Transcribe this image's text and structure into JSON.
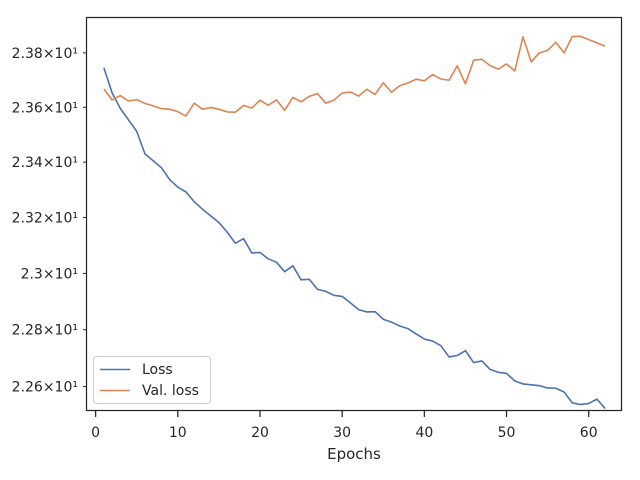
{
  "chart_data": {
    "type": "line",
    "title": "",
    "xlabel": "Epochs",
    "ylabel": "",
    "xlim": [
      -1.05,
      64.05
    ],
    "ylim": [
      22.5145,
      23.9289
    ],
    "x_ticks": [
      0,
      10,
      20,
      30,
      40,
      50,
      60
    ],
    "x_tick_labels": [
      "0",
      "10",
      "20",
      "30",
      "40",
      "50",
      "60"
    ],
    "y_ticks": [
      22.6,
      22.8,
      23.0,
      23.2,
      23.4,
      23.6,
      23.8
    ],
    "y_tick_labels": [
      "2.26×10¹",
      "2.28×10¹",
      "2.3×10¹",
      "2.32×10¹",
      "2.34×10¹",
      "2.36×10¹",
      "2.38×10¹"
    ],
    "y_scale": "log",
    "grid": false,
    "legend_position": "lower-left",
    "x": [
      1,
      2,
      3,
      4,
      5,
      6,
      7,
      8,
      9,
      10,
      11,
      12,
      13,
      14,
      15,
      16,
      17,
      18,
      19,
      20,
      21,
      22,
      23,
      24,
      25,
      26,
      27,
      28,
      29,
      30,
      31,
      32,
      33,
      34,
      35,
      36,
      37,
      38,
      39,
      40,
      41,
      42,
      43,
      44,
      45,
      46,
      47,
      48,
      49,
      50,
      51,
      52,
      53,
      54,
      55,
      56,
      57,
      58,
      59,
      60,
      61,
      62
    ],
    "series": [
      {
        "name": "Loss",
        "color": "#4c72b0",
        "values": [
          23.745,
          23.653,
          23.596,
          23.554,
          23.512,
          23.43,
          23.405,
          23.38,
          23.337,
          23.31,
          23.292,
          23.257,
          23.23,
          23.206,
          23.182,
          23.148,
          23.108,
          23.124,
          23.073,
          23.075,
          23.052,
          23.04,
          23.006,
          23.027,
          22.977,
          22.979,
          22.943,
          22.936,
          22.922,
          22.918,
          22.895,
          22.871,
          22.863,
          22.864,
          22.837,
          22.827,
          22.813,
          22.804,
          22.785,
          22.767,
          22.76,
          22.744,
          22.704,
          22.709,
          22.726,
          22.684,
          22.69,
          22.66,
          22.65,
          22.646,
          22.62,
          22.609,
          22.606,
          22.603,
          22.595,
          22.594,
          22.581,
          22.543,
          22.537,
          22.541,
          22.556,
          22.523
        ]
      },
      {
        "name": "Val. loss",
        "color": "#dd8452",
        "values": [
          23.667,
          23.627,
          23.643,
          23.623,
          23.628,
          23.614,
          23.605,
          23.595,
          23.593,
          23.584,
          23.568,
          23.615,
          23.593,
          23.599,
          23.593,
          23.583,
          23.582,
          23.607,
          23.597,
          23.626,
          23.607,
          23.627,
          23.589,
          23.636,
          23.62,
          23.64,
          23.65,
          23.615,
          23.626,
          23.652,
          23.656,
          23.641,
          23.666,
          23.647,
          23.69,
          23.655,
          23.679,
          23.689,
          23.703,
          23.697,
          23.72,
          23.704,
          23.699,
          23.752,
          23.686,
          23.773,
          23.776,
          23.753,
          23.74,
          23.759,
          23.733,
          23.859,
          23.767,
          23.8,
          23.809,
          23.839,
          23.8,
          23.86,
          23.861,
          23.849,
          23.837,
          23.825
        ]
      }
    ]
  }
}
